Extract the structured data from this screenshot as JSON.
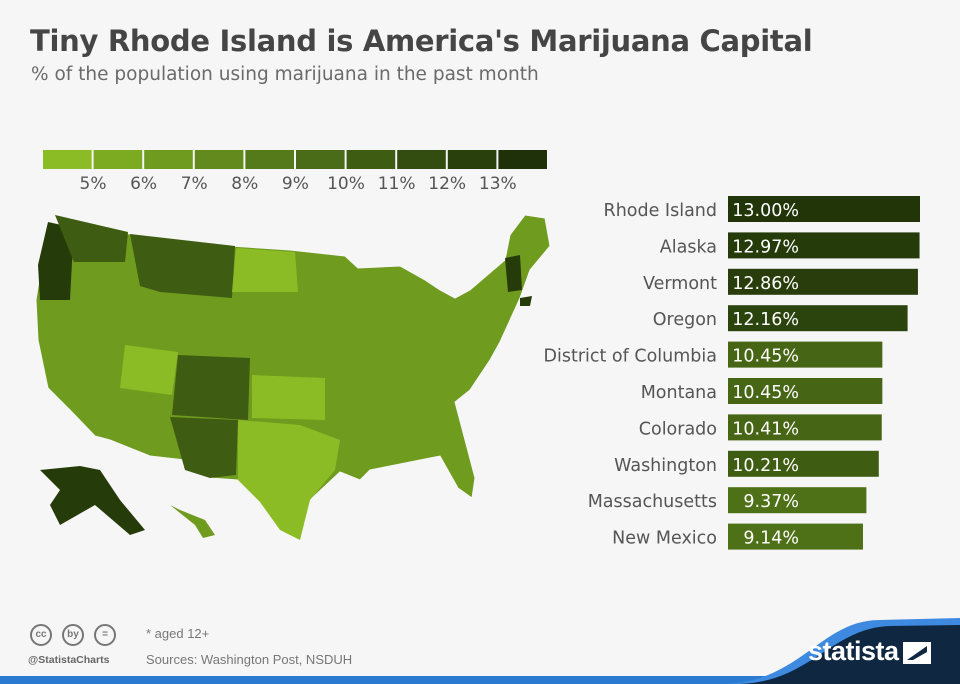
{
  "header": {
    "title": "Tiny Rhode Island is America's Marijuana Capital",
    "subtitle": "% of the population using marijuana in the past month"
  },
  "legend": {
    "colors": [
      "#8bbc25",
      "#7cab22",
      "#6f9b1f",
      "#628a1c",
      "#557a1a",
      "#4a6b17",
      "#3f5c13",
      "#334d10",
      "#29400c",
      "#1e3108"
    ],
    "labels": [
      "5%",
      "6%",
      "7%",
      "8%",
      "9%",
      "10%",
      "11%",
      "12%",
      "13%"
    ]
  },
  "chart_data": {
    "type": "bar",
    "orientation": "horizontal",
    "title": "Tiny Rhode Island is America's Marijuana Capital",
    "subtitle": "% of the population using marijuana in the past month",
    "categories": [
      "Rhode Island",
      "Alaska",
      "Vermont",
      "Oregon",
      "District of Columbia",
      "Montana",
      "Colorado",
      "Washington",
      "Massachusetts",
      "New Mexico"
    ],
    "values": [
      13.0,
      12.97,
      12.86,
      12.16,
      10.45,
      10.45,
      10.41,
      10.21,
      9.37,
      9.14
    ],
    "value_labels": [
      "13.00%",
      "12.97%",
      "12.86%",
      "12.16%",
      "10.45%",
      "10.45%",
      "10.41%",
      "10.21%",
      "9.37%",
      "9.14%"
    ],
    "bar_colors": [
      "#223508",
      "#263b0a",
      "#283d0b",
      "#2b430c",
      "#466515",
      "#466515",
      "#466515",
      "#3f5c13",
      "#4e7118",
      "#4e7118"
    ],
    "xlim": [
      0,
      13
    ],
    "grid": false
  },
  "map": {
    "fill_colors": {
      "light": "#8bbc25",
      "mid": "#6f9b1f",
      "midDark": "#557a1a",
      "dark": "#3f5c13",
      "darkest": "#263b0a"
    }
  },
  "footer": {
    "note": "* aged 12+",
    "sources": "Sources: Washington Post, NSDUH",
    "handle": "@StatistaCharts",
    "brand": "statista",
    "cc_icons": [
      "cc",
      "by",
      "="
    ]
  }
}
